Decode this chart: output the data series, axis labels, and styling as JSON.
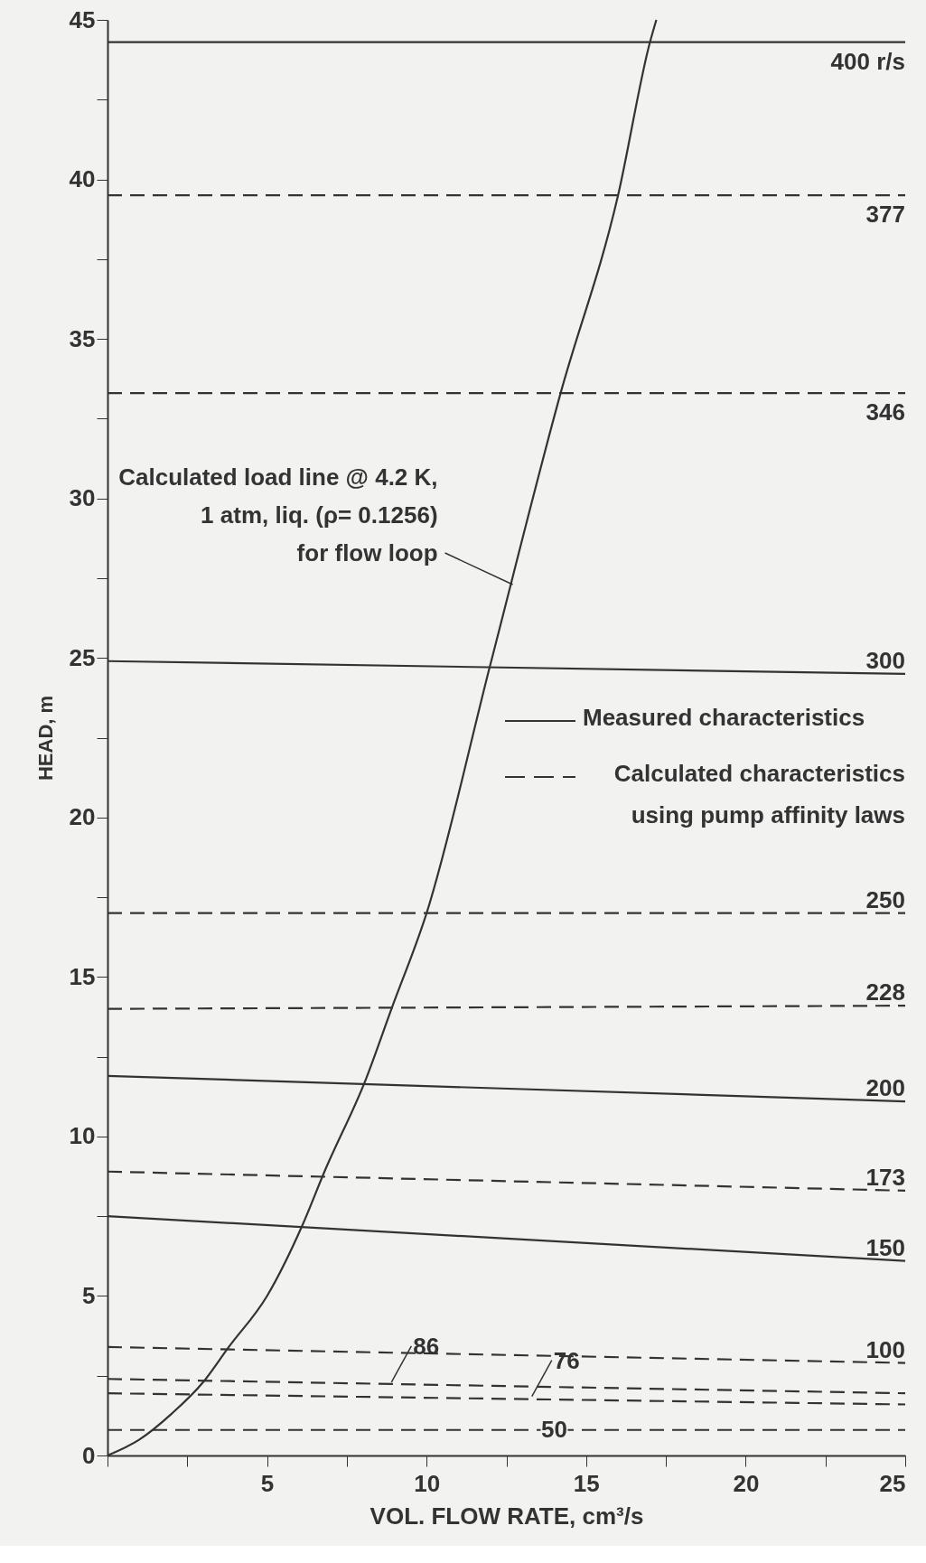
{
  "chart_data": {
    "type": "line",
    "xlabel": "VOL. FLOW RATE, cm³/s",
    "ylabel": "HEAD, m",
    "x": [
      0,
      25
    ],
    "xlim": [
      0,
      25
    ],
    "ylim": [
      0,
      45
    ],
    "xticks": [
      {
        "value": 0,
        "label": null
      },
      {
        "value": 2.5,
        "label": null
      },
      5,
      {
        "value": 7.5,
        "label": null
      },
      10,
      {
        "value": 12.5,
        "label": null
      },
      15,
      {
        "value": 17.5,
        "label": null
      },
      20,
      {
        "value": 22.5,
        "label": null
      },
      25
    ],
    "yticks": [
      0,
      {
        "value": 2.5,
        "label": null
      },
      5,
      {
        "value": 7.5,
        "label": null
      },
      10,
      {
        "value": 12.5,
        "label": null
      },
      15,
      {
        "value": 17.5,
        "label": null
      },
      20,
      {
        "value": 22.5,
        "label": null
      },
      25,
      {
        "value": 27.5,
        "label": null
      },
      30,
      {
        "value": 32.5,
        "label": null
      },
      35,
      {
        "value": 37.5,
        "label": null
      },
      40,
      {
        "value": 42.5,
        "label": null
      },
      45
    ],
    "grid": false,
    "legend": "right",
    "marker": "none",
    "series": [
      {
        "name": "400 r/s",
        "color": "#333333",
        "line_style": "solid",
        "values": [
          44.3,
          44.3
        ]
      },
      {
        "name": "377",
        "color": "#333333",
        "line_style": "dashed",
        "values": [
          39.5,
          39.5
        ]
      },
      {
        "name": "346",
        "color": "#333333",
        "line_style": "dashed",
        "values": [
          33.3,
          33.3
        ]
      },
      {
        "name": "300",
        "color": "#333333",
        "line_style": "solid",
        "values": [
          24.9,
          24.5
        ]
      },
      {
        "name": "250",
        "color": "#333333",
        "line_style": "dashed",
        "values": [
          17.0,
          17.0
        ]
      },
      {
        "name": "228",
        "color": "#333333",
        "line_style": "dashed",
        "values": [
          14.0,
          14.1
        ]
      },
      {
        "name": "200",
        "color": "#333333",
        "line_style": "solid",
        "values": [
          11.9,
          11.1
        ]
      },
      {
        "name": "173",
        "color": "#333333",
        "line_style": "dashed",
        "values": [
          8.9,
          8.3
        ]
      },
      {
        "name": "150",
        "color": "#333333",
        "line_style": "solid",
        "values": [
          7.5,
          6.1
        ]
      },
      {
        "name": "100",
        "color": "#333333",
        "line_style": "dashed",
        "values": [
          3.4,
          2.9
        ]
      },
      {
        "color": "#333333",
        "line_style": "dashed",
        "values": [
          2.4,
          1.95
        ]
      },
      {
        "color": "#333333",
        "line_style": "dashed",
        "values": [
          1.95,
          1.6
        ]
      },
      {
        "color": "#333333",
        "line_style": "dashed",
        "values": [
          0.8,
          0.8
        ]
      },
      {
        "color": "#333333",
        "line_style": "solid",
        "x": [
          0,
          1,
          2,
          3,
          3.8,
          5,
          6.1,
          6.8,
          8.1,
          8.9,
          10,
          12,
          14.2,
          16,
          17.0,
          17.2
        ],
        "values": [
          0,
          0.5,
          1.3,
          2.3,
          3.4,
          5.0,
          7.2,
          8.9,
          11.8,
          14.0,
          17.0,
          24.8,
          33.3,
          39.5,
          44.3,
          45
        ]
      }
    ],
    "annotations": [
      {
        "text": "Calculated load line @ 4.2 K,\n1 atm, liq. (ρ= 0.1256)\nfor flow loop",
        "x": 12.7,
        "y": 27.3
      },
      {
        "text": "86",
        "x": 8.9,
        "y": 2.3
      },
      {
        "text": "76",
        "x": 13.3,
        "y": 1.85
      },
      {
        "text": "50",
        "x": 14,
        "y": 0.8
      },
      "Measured characteristics",
      "Calculated characteristics\nusing pump affinity laws"
    ]
  }
}
